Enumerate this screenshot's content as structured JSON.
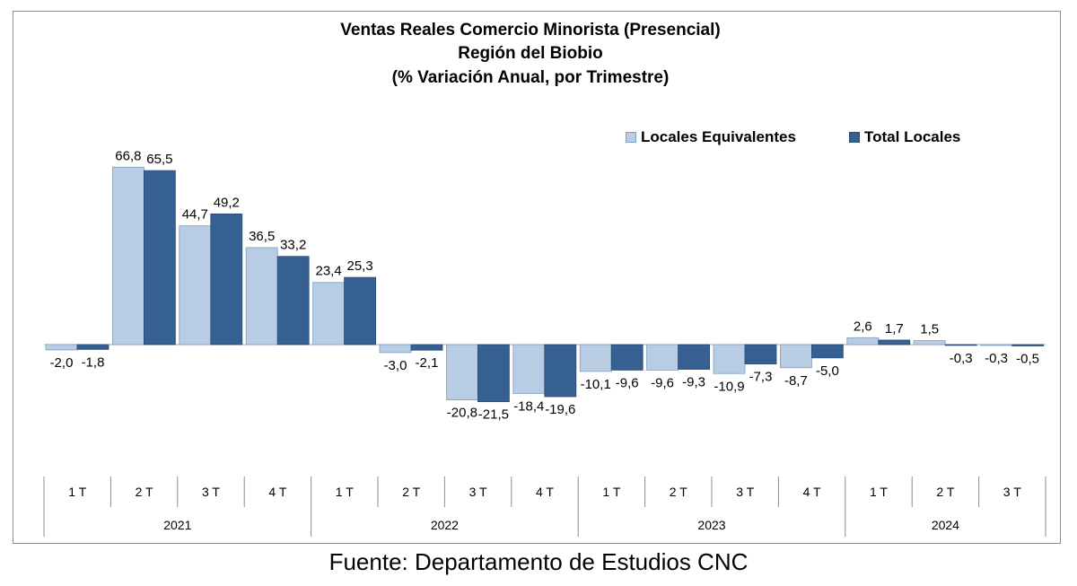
{
  "chart_data": {
    "type": "bar",
    "title": "Ventas Reales Comercio Minorista (Presencial)",
    "subtitle": "Región del Biobio",
    "subtitle2": "(% Variación Anual, por Trimestre)",
    "categories": [
      "1 T",
      "2 T",
      "3 T",
      "4 T",
      "1 T",
      "2 T",
      "3 T",
      "4 T",
      "1 T",
      "2 T",
      "3 T",
      "4 T",
      "1 T",
      "2 T",
      "3 T"
    ],
    "years": [
      {
        "label": "2021",
        "quarters": 4
      },
      {
        "label": "2022",
        "quarters": 4
      },
      {
        "label": "2023",
        "quarters": 4
      },
      {
        "label": "2024",
        "quarters": 3
      }
    ],
    "series": [
      {
        "name": "Locales Equivalentes",
        "color": "#b8cce4",
        "values": [
          -2.0,
          66.8,
          44.7,
          36.5,
          23.4,
          -3.0,
          -20.8,
          -18.4,
          -10.1,
          -9.6,
          -10.9,
          -8.7,
          2.6,
          1.5,
          -0.3
        ],
        "labels": [
          "-2,0",
          "66,8",
          "44,7",
          "36,5",
          "23,4",
          "-3,0",
          "-20,8",
          "-18,4",
          "-10,1",
          "-9,6",
          "-10,9",
          "-8,7",
          "2,6",
          "1,5",
          "-0,3"
        ]
      },
      {
        "name": "Total Locales",
        "color": "#366092",
        "values": [
          -1.8,
          65.5,
          49.2,
          33.2,
          25.3,
          -2.1,
          -21.5,
          -19.6,
          -9.6,
          -9.3,
          -7.3,
          -5.0,
          1.7,
          -0.3,
          -0.5
        ],
        "labels": [
          "-1,8",
          "65,5",
          "49,2",
          "33,2",
          "25,3",
          "-2,1",
          "-21,5",
          "-19,6",
          "-9,6",
          "-9,3",
          "-7,3",
          "-5,0",
          "1,7",
          "-0,3",
          "-0,5"
        ]
      }
    ],
    "ylim": [
      -33,
      72
    ],
    "grid": false,
    "legend_position": "top-right"
  },
  "source": "Fuente: Departamento de Estudios CNC"
}
